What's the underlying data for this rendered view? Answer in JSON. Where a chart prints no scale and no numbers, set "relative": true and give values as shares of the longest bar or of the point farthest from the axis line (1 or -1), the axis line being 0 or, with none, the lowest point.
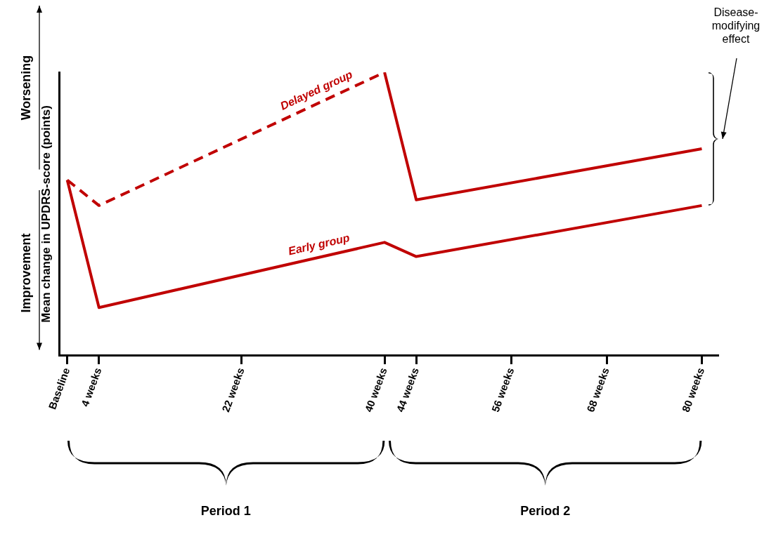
{
  "chart_data": {
    "type": "line",
    "relative": true,
    "ylabel": "Mean change in UPDRS-score (points)",
    "xlim": [
      -1,
      82
    ],
    "xticks": [
      {
        "value": 0,
        "label": "Baseline"
      },
      {
        "value": 4,
        "label": "4 weeks"
      },
      {
        "value": 22,
        "label": "22 weeks"
      },
      {
        "value": 40,
        "label": "40 weeks"
      },
      {
        "value": 44,
        "label": "44 weeks"
      },
      {
        "value": 56,
        "label": "56 weeks"
      },
      {
        "value": 68,
        "label": "68 weeks"
      },
      {
        "value": 80,
        "label": "80 weeks"
      }
    ],
    "marker": "none",
    "series": [
      {
        "name": "Delayed group",
        "color": "#c00000",
        "line_style": "dashed",
        "x": [
          0,
          4,
          40
        ],
        "values": [
          0.62,
          0.53,
          1.0
        ]
      },
      {
        "color": "#c00000",
        "line_style": "solid",
        "x": [
          40,
          44,
          80
        ],
        "values": [
          1.0,
          0.55,
          0.73
        ]
      },
      {
        "name": "Early group",
        "color": "#c00000",
        "line_style": "solid",
        "x": [
          0,
          4,
          40,
          44,
          80
        ],
        "values": [
          0.62,
          0.17,
          0.4,
          0.35,
          0.53
        ]
      }
    ],
    "annotations": [
      "Worsening",
      "Improvement",
      "Disease-modifying effect",
      "Period 1",
      "Period 2"
    ]
  }
}
